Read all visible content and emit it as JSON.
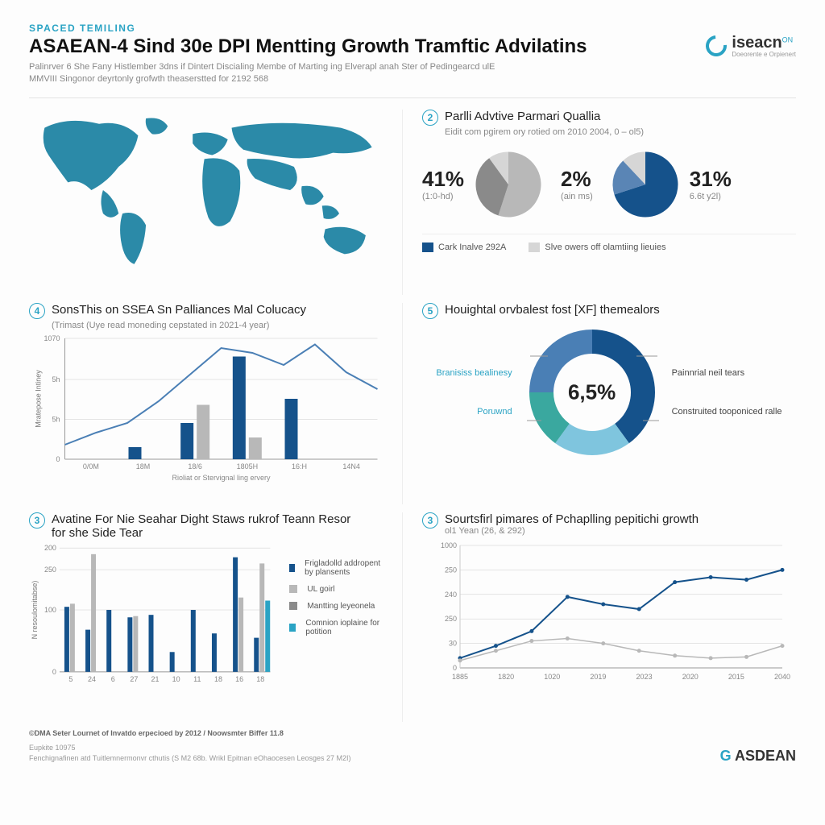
{
  "colors": {
    "accent": "#2aa3c4",
    "dark_blue": "#15528b",
    "mid_blue": "#4a7fb5",
    "light_blue": "#7fc5de",
    "gray": "#b8b8b8",
    "light_gray": "#d6d6d6",
    "text": "#222222",
    "muted": "#888888",
    "grid": "#e0e0e0",
    "bg": "#fdfdfd"
  },
  "header": {
    "eyebrow": "SPACED TEMILING",
    "eyebrow_color": "#2aa3c4",
    "title": "ASAEAN-4 Sind 30e DPI Mentting Growth Tramftic Advilatins",
    "subtitle": "Palinrver 6 She Fany Histlember 3dns if Dintert Discialing Membe of Marting ing Elverapl anah Ster of Pedingearcd ulE MMVIII Singonor deyrtonly grofwth theaserstted for 2192 568",
    "logo_text": "iseacn",
    "logo_sup": "ON",
    "logo_sub": "Doeorente e Orpienert"
  },
  "panel2": {
    "num": "2",
    "title": "Parlli Advtive Parmari Quallia",
    "sub": "Eidit com pgirem ory rotied om 2010 2004, 0 – ol5)",
    "left_pct": "41%",
    "left_sub": "(1:0-hd)",
    "mid_pct": "2%",
    "mid_sub": "(ain ms)",
    "right_pct": "31%",
    "right_sub": "6.6t y2l)",
    "pie_left": {
      "slices": [
        55,
        35,
        10
      ],
      "colors": [
        "#b8b8b8",
        "#8a8a8a",
        "#d6d6d6"
      ]
    },
    "pie_right": {
      "slices": [
        70,
        18,
        12
      ],
      "colors": [
        "#15528b",
        "#5a85b5",
        "#d6d6d6"
      ]
    },
    "legend": [
      {
        "color": "#15528b",
        "label": "Cark Inalve 292A"
      },
      {
        "color": "#d6d6d6",
        "label": "Slve owers off olamtiing lieuies"
      }
    ]
  },
  "panel4": {
    "num": "4",
    "title": "SonsThis on SSEA Sn Palliances Mal Colucacy",
    "sub": "(Trimast (Uye read moneding cepstated in 2021-4 year)",
    "ylabel": "Mratepose Intiney",
    "xlabel": "Rioliat or Stervignal ling ervery",
    "yticks": [
      "0",
      "5h",
      "5h",
      "1070"
    ],
    "ytick_vals": [
      0,
      33,
      66,
      100
    ],
    "xticks": [
      "0/0M",
      "18M",
      "18/6",
      "1805H",
      "16:H",
      "14N4"
    ],
    "bars": {
      "dark": [
        0,
        10,
        30,
        85,
        50,
        0
      ],
      "light": [
        0,
        0,
        45,
        18,
        0,
        0
      ],
      "colors": [
        "#15528b",
        "#b8b8b8"
      ]
    },
    "line": {
      "points": [
        12,
        22,
        30,
        48,
        70,
        92,
        88,
        78,
        95,
        72,
        58
      ],
      "color": "#4a7fb5"
    }
  },
  "panel5": {
    "num": "5",
    "title": "Houightal orvbalest fost [XF] themealors",
    "center": "6,5%",
    "segments": [
      {
        "value": 40,
        "color": "#15528b"
      },
      {
        "value": 20,
        "color": "#7fc5de"
      },
      {
        "value": 15,
        "color": "#3aa89f"
      },
      {
        "value": 25,
        "color": "#4a7fb5"
      }
    ],
    "labels_left": [
      "Branisiss bealinesy",
      "Poruwnd"
    ],
    "labels_right": [
      "Painnrial neil tears",
      "Construited tooponiced ralle"
    ]
  },
  "panel3": {
    "num": "3",
    "title": "Avatine For Nie Seahar Dight Staws rukrof Teann Resor for she Side Tear",
    "ylabel": "N resoulomitabse)",
    "yticks": [
      "0",
      "100",
      "250",
      "200"
    ],
    "ytick_vals": [
      0,
      100,
      165,
      200
    ],
    "xticks": [
      "5",
      "24",
      "6",
      "27",
      "21",
      "10",
      "11",
      "18",
      "16",
      "18"
    ],
    "series": [
      {
        "color": "#15528b",
        "values": [
          105,
          68,
          100,
          88,
          92,
          32,
          100,
          62,
          185,
          55
        ]
      },
      {
        "color": "#b8b8b8",
        "values": [
          110,
          190,
          0,
          90,
          0,
          0,
          0,
          0,
          120,
          175
        ]
      },
      {
        "color": "#2aa3c4",
        "values": [
          0,
          0,
          0,
          0,
          0,
          0,
          0,
          0,
          0,
          115
        ]
      }
    ],
    "legend": [
      {
        "color": "#15528b",
        "label": "Frigladolld addropent by plansents"
      },
      {
        "color": "#b8b8b8",
        "label": "UL goirl"
      },
      {
        "color": "#8a8a8a",
        "label": "Mantting leyeonela"
      },
      {
        "color": "#2aa3c4",
        "label": "Comnion ioplaine for potition"
      }
    ]
  },
  "panel6": {
    "num": "3",
    "title": "Sourtsfirl pimares of Pchaplling pepitichi growth",
    "sub": "ol1 Yean (26, & 292)",
    "yticks": [
      "0",
      "30",
      "250",
      "240",
      "250",
      "1000"
    ],
    "ytick_vals": [
      0,
      20,
      40,
      60,
      80,
      100
    ],
    "xticks": [
      "1885",
      "1820",
      "1020",
      "2019",
      "2023",
      "2020",
      "2015",
      "2040"
    ],
    "lines": [
      {
        "color": "#15528b",
        "width": 2,
        "points": [
          8,
          18,
          30,
          58,
          52,
          48,
          70,
          74,
          72,
          80
        ]
      },
      {
        "color": "#b8b8b8",
        "width": 1.5,
        "points": [
          6,
          14,
          22,
          24,
          20,
          14,
          10,
          8,
          9,
          18
        ]
      }
    ]
  },
  "footer": {
    "source": "©DMA Seter Lournet of Invatdo erpecioed by 2012 / Noowsmter Biffer 11.8",
    "small1": "Eupkite 10975",
    "small2": "Fenchignafinen atd Tuitlemnermonvr cthutis (S M2 68b. Wrikl Epitnan eOhaocesen Leosges 27 M2I)",
    "brand": "ASDEAN",
    "brand_prefix": "G "
  }
}
